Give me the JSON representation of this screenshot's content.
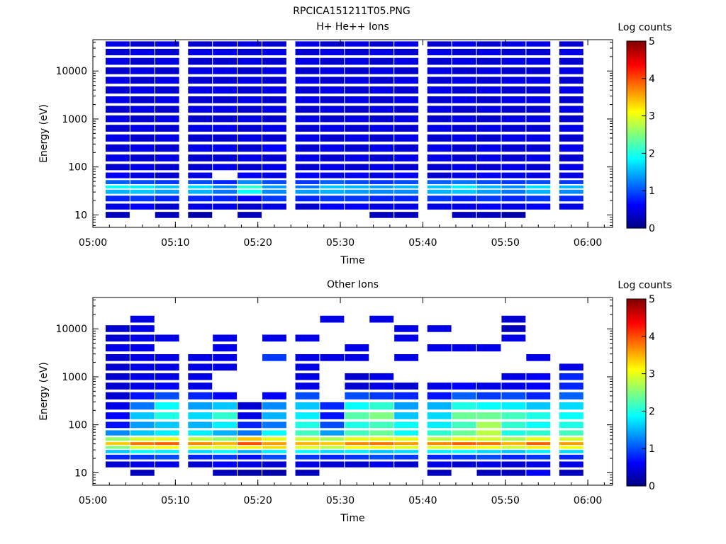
{
  "figure": {
    "title": "RPCICA151211T05.PNG"
  },
  "chart_data": [
    {
      "type": "heatmap",
      "title": "H+ He++ Ions",
      "xlabel": "Time",
      "ylabel": "Energy (eV)",
      "x_ticks": [
        "05:00",
        "05:10",
        "05:20",
        "05:30",
        "05:40",
        "05:50",
        "06:00"
      ],
      "xlim": [
        "05:00",
        "06:03"
      ],
      "y_scale": "log",
      "y_ticks": [
        "10",
        "100",
        "1000",
        "10000"
      ],
      "ylim": [
        5.5,
        45000
      ],
      "colorbar": {
        "label": "Log counts",
        "range": [
          0,
          5
        ],
        "ticks": [
          "0",
          "1",
          "2",
          "3",
          "4",
          "5"
        ]
      },
      "time_columns": [
        "05:03",
        "05:06",
        "05:09",
        "05:13",
        "05:16",
        "05:19",
        "05:22",
        "05:26",
        "05:29",
        "05:32",
        "05:35",
        "05:38",
        "05:42",
        "05:45",
        "05:48",
        "05:51",
        "05:54",
        "05:58"
      ],
      "energy_rows_eV": [
        10,
        15,
        22,
        32,
        38,
        47,
        65,
        100,
        150,
        250,
        400,
        650,
        1000,
        1600,
        2500,
        4000,
        6500,
        10000,
        16000,
        25000,
        38000
      ],
      "log_counts": [
        [
          0.3,
          null,
          0.3,
          0.2,
          null,
          0.3,
          null,
          null,
          null,
          null,
          0.3,
          0.3,
          null,
          0.3,
          0.3,
          0.2,
          null,
          null
        ],
        [
          0.5,
          0.6,
          0.4,
          0.5,
          0.5,
          0.4,
          0.5,
          0.4,
          0.6,
          0.6,
          0.5,
          0.5,
          0.5,
          0.5,
          0.6,
          0.5,
          0.6,
          0.5
        ],
        [
          0.8,
          0.9,
          0.8,
          0.8,
          0.8,
          0.6,
          0.9,
          0.8,
          0.9,
          0.9,
          0.8,
          0.8,
          0.9,
          0.8,
          0.9,
          0.8,
          0.9,
          0.8
        ],
        [
          1.5,
          1.6,
          1.4,
          1.5,
          1.2,
          1.9,
          1.3,
          1.4,
          1.5,
          1.4,
          1.3,
          1.3,
          1.5,
          1.6,
          1.4,
          1.2,
          1.5,
          1.3
        ],
        [
          1.9,
          1.8,
          1.6,
          1.7,
          1.3,
          2.1,
          1.4,
          1.2,
          1.6,
          1.5,
          1.4,
          1.5,
          1.6,
          1.8,
          1.5,
          1.3,
          1.7,
          1.5
        ],
        [
          1.1,
          1.0,
          0.9,
          1.0,
          0.8,
          1.3,
          1.0,
          0.9,
          1.1,
          1.0,
          0.9,
          1.0,
          1.1,
          1.2,
          1.0,
          0.9,
          1.0,
          0.9
        ],
        [
          0.6,
          0.5,
          0.4,
          0.5,
          null,
          0.6,
          0.5,
          0.6,
          0.5,
          0.6,
          0.5,
          0.6,
          0.4,
          0.5,
          0.6,
          0.5,
          0.5,
          0.5
        ],
        [
          0.4,
          0.5,
          0.4,
          0.4,
          0.5,
          0.4,
          0.5,
          0.4,
          0.5,
          0.4,
          0.5,
          0.4,
          0.4,
          0.5,
          0.4,
          0.5,
          0.4,
          0.5
        ],
        [
          0.5,
          0.4,
          0.5,
          0.4,
          0.4,
          0.5,
          0.4,
          0.5,
          0.4,
          0.5,
          0.4,
          0.5,
          0.5,
          0.4,
          0.5,
          0.4,
          0.5,
          0.4
        ],
        [
          0.4,
          0.5,
          0.4,
          0.5,
          0.5,
          0.4,
          0.6,
          0.4,
          0.5,
          0.4,
          0.5,
          0.4,
          0.5,
          0.4,
          0.5,
          0.4,
          0.4,
          0.5
        ],
        [
          0.5,
          0.4,
          0.5,
          0.4,
          0.4,
          0.5,
          0.4,
          0.5,
          0.4,
          0.5,
          0.4,
          0.5,
          0.4,
          0.5,
          0.4,
          0.5,
          0.5,
          0.4
        ],
        [
          0.4,
          0.5,
          0.4,
          0.5,
          0.5,
          0.4,
          0.5,
          0.4,
          0.5,
          0.4,
          0.5,
          0.4,
          0.5,
          0.4,
          0.5,
          0.4,
          0.4,
          0.5
        ],
        [
          0.5,
          0.4,
          0.5,
          0.4,
          0.4,
          0.5,
          0.4,
          0.5,
          0.4,
          0.5,
          0.4,
          0.5,
          0.4,
          0.5,
          0.4,
          0.5,
          0.5,
          0.4
        ],
        [
          0.4,
          0.5,
          0.4,
          0.5,
          0.5,
          0.4,
          0.5,
          0.4,
          0.5,
          0.4,
          0.5,
          0.4,
          0.5,
          0.4,
          0.5,
          0.4,
          0.4,
          0.5
        ],
        [
          0.5,
          0.4,
          0.5,
          0.4,
          0.4,
          0.5,
          0.4,
          0.5,
          0.4,
          0.5,
          0.4,
          0.5,
          0.4,
          0.5,
          0.4,
          0.5,
          0.5,
          0.4
        ],
        [
          0.4,
          0.5,
          0.4,
          0.5,
          0.5,
          0.4,
          0.5,
          0.4,
          0.5,
          0.4,
          0.5,
          0.4,
          0.5,
          0.4,
          0.5,
          0.4,
          0.4,
          0.5
        ],
        [
          0.5,
          0.4,
          0.5,
          0.4,
          0.4,
          0.5,
          0.4,
          0.5,
          0.4,
          0.5,
          0.4,
          0.5,
          0.4,
          0.5,
          0.4,
          0.5,
          0.5,
          0.4
        ],
        [
          0.4,
          0.5,
          0.4,
          0.5,
          0.5,
          0.4,
          0.5,
          0.4,
          0.5,
          0.4,
          0.5,
          0.4,
          0.5,
          0.4,
          0.5,
          0.4,
          0.4,
          0.5
        ],
        [
          0.5,
          0.4,
          0.5,
          0.4,
          0.4,
          0.5,
          0.4,
          0.5,
          0.4,
          0.5,
          0.4,
          0.5,
          0.4,
          0.5,
          0.4,
          0.5,
          0.5,
          0.4
        ],
        [
          0.4,
          0.5,
          0.4,
          0.5,
          0.5,
          0.4,
          0.5,
          0.4,
          0.5,
          0.4,
          0.5,
          0.4,
          0.5,
          0.4,
          0.5,
          0.4,
          0.4,
          0.5
        ],
        [
          0.5,
          0.4,
          0.5,
          0.4,
          0.4,
          0.5,
          0.4,
          0.5,
          0.4,
          0.5,
          0.4,
          0.5,
          0.4,
          0.5,
          0.4,
          0.5,
          0.5,
          0.4
        ]
      ]
    },
    {
      "type": "heatmap",
      "title": "Other Ions",
      "xlabel": "Time",
      "ylabel": "Energy (eV)",
      "x_ticks": [
        "05:00",
        "05:10",
        "05:20",
        "05:30",
        "05:40",
        "05:50",
        "06:00"
      ],
      "xlim": [
        "05:00",
        "06:03"
      ],
      "y_scale": "log",
      "y_ticks": [
        "10",
        "100",
        "1000",
        "10000"
      ],
      "ylim": [
        5.5,
        45000
      ],
      "colorbar": {
        "label": "Log counts",
        "range": [
          0,
          5
        ],
        "ticks": [
          "0",
          "1",
          "2",
          "3",
          "4",
          "5"
        ]
      },
      "time_columns": [
        "05:03",
        "05:06",
        "05:09",
        "05:13",
        "05:16",
        "05:19",
        "05:22",
        "05:26",
        "05:29",
        "05:32",
        "05:35",
        "05:38",
        "05:42",
        "05:45",
        "05:48",
        "05:51",
        "05:54",
        "05:58"
      ],
      "energy_rows_eV": [
        10,
        15,
        22,
        28,
        34,
        40,
        50,
        65,
        100,
        150,
        250,
        400,
        650,
        1000,
        1600,
        2500,
        4000,
        6500,
        10000,
        16000,
        25000
      ],
      "log_counts": [
        [
          null,
          0.3,
          null,
          null,
          0.3,
          0.2,
          0.2,
          0.3,
          null,
          null,
          null,
          null,
          0.3,
          null,
          0.3,
          0.3,
          0.6,
          0.3
        ],
        [
          0.4,
          0.5,
          0.5,
          0.4,
          0.6,
          0.5,
          0.4,
          0.5,
          0.4,
          0.4,
          0.5,
          0.4,
          0.5,
          0.4,
          0.5,
          0.4,
          0.5,
          0.5
        ],
        [
          0.8,
          0.9,
          1.0,
          0.8,
          0.9,
          0.7,
          1.0,
          0.9,
          0.8,
          0.9,
          1.0,
          0.9,
          0.8,
          0.9,
          1.0,
          0.8,
          0.9,
          0.8
        ],
        [
          1.6,
          1.9,
          1.8,
          1.7,
          1.9,
          1.5,
          1.8,
          1.9,
          1.7,
          1.8,
          1.6,
          1.7,
          1.8,
          1.9,
          1.7,
          1.6,
          1.8,
          1.7
        ],
        [
          2.5,
          3.0,
          3.1,
          3.0,
          3.0,
          3.2,
          3.3,
          3.0,
          2.8,
          3.1,
          3.2,
          3.0,
          3.0,
          3.2,
          3.1,
          2.9,
          3.2,
          3.1
        ],
        [
          3.4,
          3.8,
          3.9,
          3.7,
          3.5,
          4.0,
          3.6,
          3.5,
          3.4,
          3.7,
          3.8,
          3.6,
          3.7,
          3.9,
          3.8,
          3.5,
          3.9,
          3.6
        ],
        [
          2.6,
          2.9,
          3.0,
          2.8,
          2.6,
          3.4,
          3.0,
          2.9,
          2.7,
          3.0,
          3.0,
          3.0,
          2.8,
          3.0,
          2.9,
          2.7,
          3.0,
          2.9
        ],
        [
          1.3,
          1.6,
          1.8,
          1.8,
          1.5,
          1.2,
          1.9,
          2.2,
          1.4,
          2.2,
          2.4,
          1.9,
          2.1,
          2.4,
          2.8,
          2.0,
          2.1,
          2.2
        ],
        [
          0.7,
          1.4,
          1.6,
          1.5,
          1.8,
          0.8,
          1.2,
          2.0,
          1.0,
          2.0,
          2.2,
          1.9,
          1.8,
          2.2,
          2.7,
          2.1,
          1.9,
          2.0
        ],
        [
          0.6,
          1.6,
          2.0,
          1.7,
          2.1,
          0.5,
          1.5,
          1.8,
          0.7,
          2.3,
          2.5,
          1.6,
          1.7,
          2.4,
          2.4,
          2.2,
          2.0,
          1.9
        ],
        [
          0.5,
          1.2,
          1.9,
          1.4,
          1.6,
          0.4,
          1.3,
          1.6,
          0.8,
          1.9,
          2.1,
          1.4,
          1.5,
          2.0,
          1.9,
          1.8,
          1.6,
          1.7
        ],
        [
          0.4,
          0.7,
          1.0,
          0.8,
          0.6,
          null,
          0.6,
          1.0,
          null,
          1.0,
          0.9,
          0.8,
          0.7,
          1.1,
          0.9,
          1.0,
          0.8,
          1.1
        ],
        [
          0.4,
          0.5,
          0.6,
          0.5,
          null,
          null,
          null,
          0.5,
          null,
          0.4,
          0.5,
          0.4,
          0.5,
          0.6,
          0.5,
          0.5,
          0.6,
          0.8
        ],
        [
          0.4,
          0.5,
          0.5,
          0.5,
          null,
          null,
          null,
          0.5,
          null,
          0.4,
          0.5,
          null,
          null,
          null,
          null,
          0.5,
          0.6,
          0.8
        ],
        [
          0.4,
          0.5,
          0.5,
          0.5,
          0.5,
          null,
          null,
          0.5,
          null,
          null,
          null,
          null,
          null,
          null,
          null,
          null,
          null,
          0.5
        ],
        [
          0.4,
          0.5,
          0.5,
          0.5,
          0.5,
          null,
          0.9,
          0.5,
          0.5,
          0.5,
          null,
          0.5,
          null,
          null,
          null,
          null,
          0.5,
          null
        ],
        [
          0.5,
          0.5,
          null,
          null,
          0.5,
          null,
          null,
          null,
          null,
          0.5,
          null,
          null,
          0.5,
          0.5,
          0.5,
          null,
          null,
          null
        ],
        [
          0.4,
          0.5,
          0.5,
          null,
          0.5,
          null,
          0.5,
          0.5,
          null,
          null,
          null,
          0.5,
          null,
          null,
          null,
          0.5,
          null,
          null
        ],
        [
          0.4,
          0.5,
          null,
          null,
          null,
          null,
          null,
          null,
          null,
          null,
          null,
          0.5,
          0.5,
          null,
          null,
          0.3,
          null,
          null
        ],
        [
          null,
          0.5,
          null,
          null,
          null,
          null,
          null,
          null,
          0.5,
          null,
          0.5,
          null,
          null,
          null,
          null,
          0.4,
          null,
          null
        ],
        [
          null,
          null,
          null,
          null,
          null,
          null,
          null,
          null,
          null,
          null,
          null,
          null,
          null,
          null,
          null,
          null,
          null,
          null
        ]
      ]
    }
  ]
}
